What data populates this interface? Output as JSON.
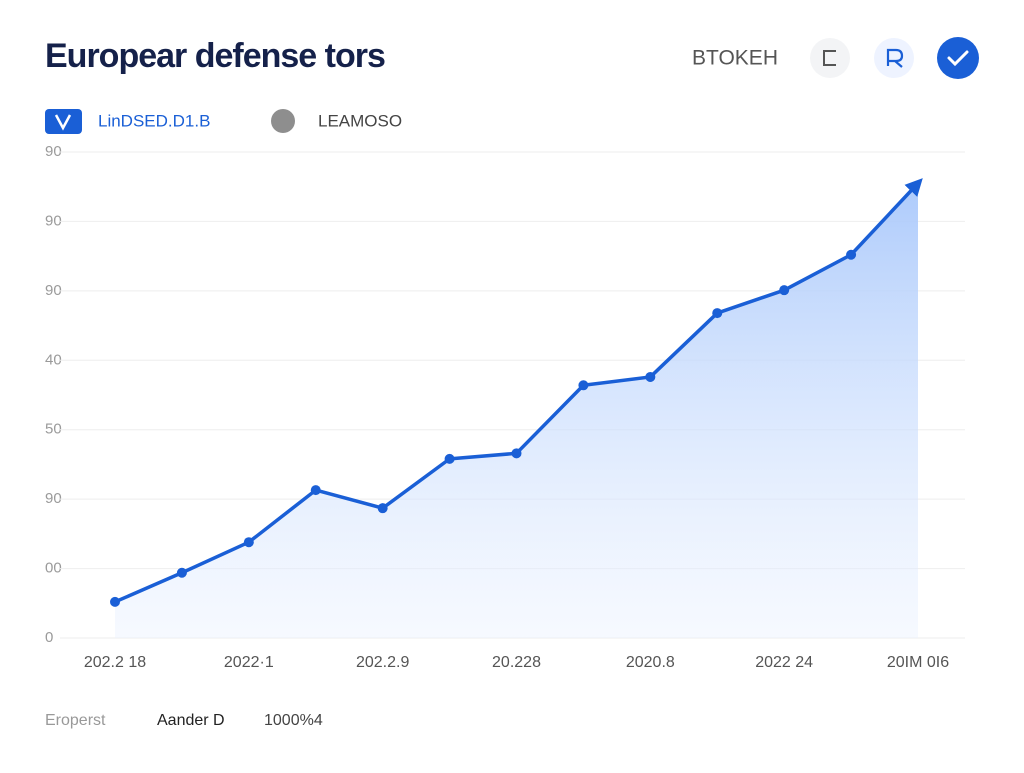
{
  "chart_data": {
    "type": "line",
    "title": "Europear defense tors",
    "toolbar_label": "BTOKEH",
    "categories": [
      "202.2 18",
      null,
      "2022·1",
      null,
      "202.2.9",
      null,
      "20.228",
      null,
      "2020.8",
      null,
      "2022 24",
      null,
      "20IM 0I6"
    ],
    "series": [
      {
        "name": "LinDSED.D1.B",
        "color": "#1a5fd6",
        "values": [
          5.2,
          9.4,
          13.8,
          21.3,
          18.7,
          25.8,
          26.6,
          36.4,
          37.6,
          46.8,
          50.1,
          55.2,
          65.5
        ]
      }
    ],
    "inactive_series": [
      {
        "name": "LEAMOSO",
        "color": "#8e8e8e"
      }
    ],
    "ylim": [
      0,
      70
    ],
    "yticks": [
      0,
      {
        "value": 10,
        "label": "00"
      },
      {
        "value": 20,
        "label": "90"
      },
      {
        "value": 30,
        "label": "50"
      },
      {
        "value": 40,
        "label": "40"
      },
      {
        "value": 50,
        "label": "90"
      },
      {
        "value": 60,
        "label": "90"
      },
      {
        "value": 70,
        "label": "90"
      }
    ],
    "grid": true,
    "footer": [
      "Eroperst",
      "Aander D",
      "1000%4"
    ]
  }
}
